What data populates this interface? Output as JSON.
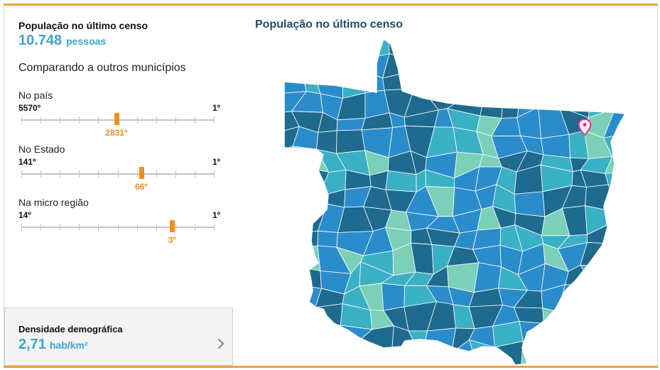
{
  "population": {
    "title": "População no último censo",
    "value": "10.748",
    "unit": "pessoas"
  },
  "comparison_title": "Comparando a outros municípios",
  "ranks": [
    {
      "label": "No país",
      "low": "5570º",
      "high": "1º",
      "value_label": "2831º",
      "position_fraction": 0.492
    },
    {
      "label": "No Estado",
      "low": "141º",
      "high": "1º",
      "value_label": "66º",
      "position_fraction": 0.621
    },
    {
      "label": "Na micro região",
      "low": "14º",
      "high": "1º",
      "value_label": "3º",
      "position_fraction": 0.78
    }
  ],
  "density": {
    "title": "Densidade demográfica",
    "value": "2,71",
    "unit": "hab/km²",
    "arrow_icon": "chevron-right-icon"
  },
  "map": {
    "title": "População no último censo",
    "marker_icon": "location-pin-icon",
    "colors": [
      "#1e6b8f",
      "#2b8ccb",
      "#3ab0c5",
      "#7ccfb9"
    ],
    "marker_color": "#e8318b"
  }
}
